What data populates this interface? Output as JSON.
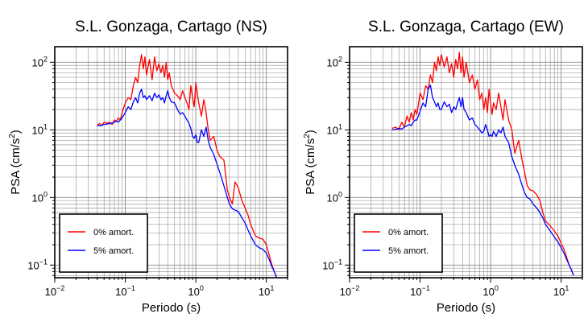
{
  "chart_data": [
    {
      "type": "line",
      "title": "S.L. Gonzaga, Cartago (NS)",
      "xlabel": "Periodo (s)",
      "ylabel_main": "PSA (cm/s",
      "ylabel_sup": "2",
      "ylabel_close": ")",
      "x_scale": "log",
      "y_scale": "log",
      "xlim": [
        0.01,
        20
      ],
      "ylim": [
        0.065,
        170
      ],
      "x_ticks": [
        {
          "value": 0.01,
          "base": "10",
          "exp": "−2"
        },
        {
          "value": 0.1,
          "base": "10",
          "exp": "−1"
        },
        {
          "value": 1,
          "base": "10",
          "exp": "0"
        },
        {
          "value": 10,
          "base": "10",
          "exp": "1"
        }
      ],
      "y_ticks": [
        {
          "value": 0.1,
          "base": "10",
          "exp": "−1"
        },
        {
          "value": 1,
          "base": "10",
          "exp": "0"
        },
        {
          "value": 10,
          "base": "10",
          "exp": "1"
        },
        {
          "value": 100,
          "base": "10",
          "exp": "2"
        }
      ],
      "grid": true,
      "legend_position": "bottom-left",
      "series": [
        {
          "name": "0% amort.",
          "color": "#ff0000",
          "x": [
            0.04,
            0.043,
            0.046,
            0.05,
            0.055,
            0.06,
            0.065,
            0.07,
            0.075,
            0.08,
            0.085,
            0.09,
            0.1,
            0.11,
            0.12,
            0.13,
            0.14,
            0.15,
            0.16,
            0.17,
            0.18,
            0.19,
            0.2,
            0.22,
            0.24,
            0.26,
            0.28,
            0.3,
            0.32,
            0.34,
            0.36,
            0.38,
            0.4,
            0.42,
            0.45,
            0.5,
            0.55,
            0.6,
            0.65,
            0.7,
            0.75,
            0.8,
            0.85,
            0.9,
            0.95,
            1.0,
            1.05,
            1.1,
            1.2,
            1.3,
            1.4,
            1.5,
            1.6,
            1.8,
            2.0,
            2.2,
            2.5,
            2.8,
            3.0,
            3.3,
            3.6,
            4.0,
            4.5,
            5.0,
            5.5,
            6.0,
            7.0,
            8.0,
            9.0,
            10.0,
            11.0,
            12.0,
            13.0,
            14.0
          ],
          "y": [
            11.5,
            12.5,
            11.5,
            13,
            12.5,
            13,
            12,
            14,
            13.5,
            15,
            14,
            18,
            25,
            30,
            28,
            45,
            60,
            50,
            90,
            130,
            80,
            120,
            65,
            110,
            55,
            120,
            75,
            95,
            70,
            90,
            60,
            100,
            55,
            70,
            45,
            35,
            32,
            28,
            38,
            30,
            25,
            20,
            45,
            30,
            22,
            50,
            35,
            25,
            16,
            28,
            18,
            10,
            7,
            8,
            5,
            4,
            3.6,
            1.3,
            1.0,
            0.8,
            1.7,
            1.4,
            0.9,
            0.7,
            0.55,
            0.4,
            0.27,
            0.25,
            0.24,
            0.2,
            0.14,
            0.1,
            0.08,
            0.065
          ]
        },
        {
          "name": "5% amort.",
          "color": "#0000ff",
          "x": [
            0.04,
            0.045,
            0.05,
            0.055,
            0.06,
            0.065,
            0.07,
            0.075,
            0.08,
            0.085,
            0.09,
            0.1,
            0.11,
            0.12,
            0.13,
            0.14,
            0.15,
            0.16,
            0.17,
            0.18,
            0.19,
            0.2,
            0.22,
            0.24,
            0.26,
            0.28,
            0.3,
            0.32,
            0.34,
            0.36,
            0.38,
            0.4,
            0.42,
            0.45,
            0.5,
            0.55,
            0.6,
            0.65,
            0.7,
            0.75,
            0.8,
            0.85,
            0.9,
            0.95,
            1.0,
            1.05,
            1.1,
            1.2,
            1.3,
            1.4,
            1.5,
            1.6,
            1.8,
            2.0,
            2.2,
            2.5,
            2.8,
            3.0,
            3.3,
            3.6,
            4.0,
            4.5,
            5.0,
            5.5,
            6.0,
            7.0,
            8.0,
            9.0,
            10.0,
            11.0,
            12.0,
            13.0,
            14.0
          ],
          "y": [
            11.5,
            11.6,
            12,
            12.2,
            12.4,
            12.6,
            13,
            13.5,
            13,
            14,
            15,
            18,
            22,
            20,
            26,
            30,
            25,
            35,
            40,
            30,
            32,
            28,
            32,
            27,
            35,
            30,
            33,
            28,
            30,
            25,
            32,
            38,
            30,
            26,
            25,
            20,
            17,
            18,
            16,
            14,
            12.5,
            10.5,
            8,
            7.5,
            8.5,
            6.5,
            6.5,
            10,
            8,
            11,
            7,
            5.5,
            4.3,
            3.1,
            2.3,
            1.5,
            1.0,
            0.8,
            0.68,
            0.65,
            0.62,
            0.5,
            0.42,
            0.33,
            0.27,
            0.2,
            0.18,
            0.17,
            0.15,
            0.12,
            0.095,
            0.08,
            0.065
          ]
        }
      ]
    },
    {
      "type": "line",
      "title": "S.L. Gonzaga, Cartago (EW)",
      "xlabel": "Periodo (s)",
      "ylabel_main": "PSA (cm/s",
      "ylabel_sup": "2",
      "ylabel_close": ")",
      "x_scale": "log",
      "y_scale": "log",
      "xlim": [
        0.01,
        20
      ],
      "ylim": [
        0.065,
        170
      ],
      "x_ticks": [
        {
          "value": 0.01,
          "base": "10",
          "exp": "−2"
        },
        {
          "value": 0.1,
          "base": "10",
          "exp": "−1"
        },
        {
          "value": 1,
          "base": "10",
          "exp": "0"
        },
        {
          "value": 10,
          "base": "10",
          "exp": "1"
        }
      ],
      "y_ticks": [
        {
          "value": 0.1,
          "base": "10",
          "exp": "−1"
        },
        {
          "value": 1,
          "base": "10",
          "exp": "0"
        },
        {
          "value": 10,
          "base": "10",
          "exp": "1"
        },
        {
          "value": 100,
          "base": "10",
          "exp": "2"
        }
      ],
      "grid": true,
      "legend_position": "bottom-left",
      "series": [
        {
          "name": "0% amort.",
          "color": "#ff0000",
          "x": [
            0.04,
            0.045,
            0.05,
            0.055,
            0.06,
            0.065,
            0.07,
            0.075,
            0.08,
            0.085,
            0.09,
            0.1,
            0.11,
            0.12,
            0.13,
            0.14,
            0.15,
            0.16,
            0.17,
            0.18,
            0.19,
            0.2,
            0.22,
            0.24,
            0.26,
            0.28,
            0.3,
            0.32,
            0.34,
            0.36,
            0.38,
            0.4,
            0.42,
            0.45,
            0.5,
            0.55,
            0.6,
            0.65,
            0.7,
            0.75,
            0.8,
            0.85,
            0.9,
            0.95,
            1.0,
            1.05,
            1.1,
            1.2,
            1.3,
            1.4,
            1.5,
            1.6,
            1.8,
            2.0,
            2.2,
            2.5,
            2.8,
            3.0,
            3.3,
            3.6,
            4.0,
            4.5,
            5.0,
            5.5,
            6.0,
            7.0,
            8.0,
            9.0,
            10.0,
            11.0,
            12.0,
            13.0,
            14.0,
            15.0
          ],
          "y": [
            10.5,
            11,
            10,
            13,
            11,
            16,
            13,
            18,
            14,
            20,
            17,
            35,
            28,
            45,
            40,
            65,
            50,
            100,
            75,
            120,
            90,
            130,
            85,
            120,
            70,
            95,
            60,
            110,
            80,
            140,
            70,
            120,
            60,
            100,
            50,
            65,
            40,
            55,
            28,
            35,
            20,
            30,
            18,
            40,
            25,
            17,
            25,
            20,
            35,
            22,
            14,
            28,
            14,
            10,
            4.5,
            7,
            3.5,
            2.5,
            1.5,
            1.3,
            1.25,
            1.1,
            0.9,
            0.6,
            0.45,
            0.38,
            0.32,
            0.27,
            0.21,
            0.17,
            0.13,
            0.1,
            0.085,
            0.07
          ]
        },
        {
          "name": "5% amort.",
          "color": "#0000ff",
          "x": [
            0.04,
            0.045,
            0.05,
            0.055,
            0.06,
            0.065,
            0.07,
            0.075,
            0.08,
            0.085,
            0.09,
            0.1,
            0.11,
            0.12,
            0.13,
            0.14,
            0.15,
            0.16,
            0.17,
            0.18,
            0.19,
            0.2,
            0.22,
            0.24,
            0.26,
            0.28,
            0.3,
            0.32,
            0.34,
            0.36,
            0.38,
            0.4,
            0.42,
            0.45,
            0.5,
            0.55,
            0.6,
            0.65,
            0.7,
            0.75,
            0.8,
            0.85,
            0.9,
            0.95,
            1.0,
            1.05,
            1.1,
            1.2,
            1.3,
            1.4,
            1.5,
            1.6,
            1.8,
            2.0,
            2.2,
            2.5,
            2.8,
            3.0,
            3.3,
            3.6,
            4.0,
            4.5,
            5.0,
            5.5,
            6.0,
            7.0,
            8.0,
            9.0,
            10.0,
            11.0,
            12.0,
            13.0,
            14.0,
            15.0
          ],
          "y": [
            10,
            10.2,
            10.5,
            10.3,
            11,
            11.5,
            12,
            11.5,
            13,
            14,
            14,
            19,
            25,
            22,
            40,
            46,
            30,
            26,
            22,
            25,
            20,
            20,
            26,
            22,
            24,
            18,
            22,
            20,
            25,
            30,
            22,
            30,
            20,
            18,
            14,
            15,
            12,
            11,
            10,
            9,
            9.5,
            12,
            10,
            8,
            8.5,
            8,
            9.5,
            8,
            10,
            9,
            11,
            8,
            6.5,
            4,
            3,
            2.2,
            1.5,
            1.2,
            1.0,
            0.95,
            0.8,
            0.7,
            0.6,
            0.5,
            0.4,
            0.32,
            0.26,
            0.22,
            0.18,
            0.15,
            0.12,
            0.1,
            0.085,
            0.07
          ]
        }
      ]
    }
  ]
}
